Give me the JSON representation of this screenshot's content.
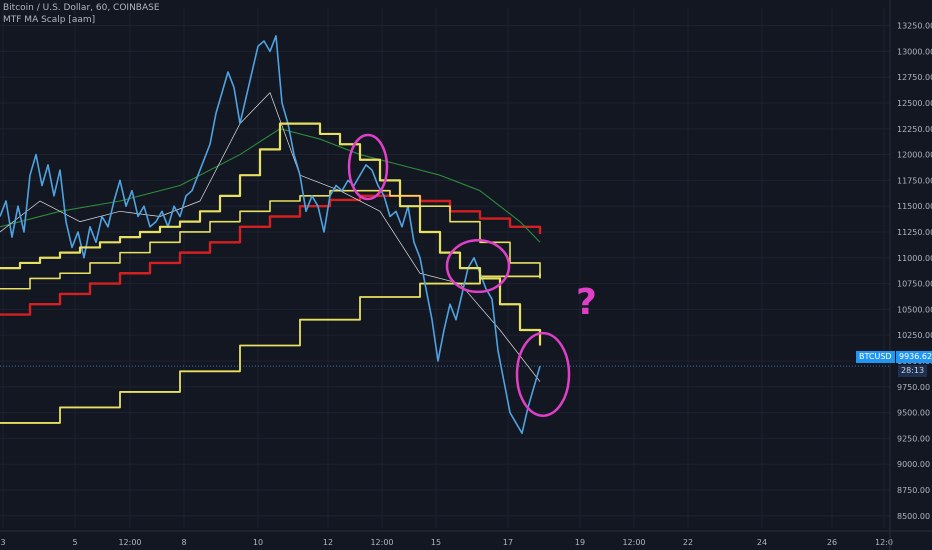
{
  "header": {
    "title": "Bitcoin / U.S. Dollar, 60, COINBASE",
    "indicator": "MTF MA Scalp [aam]"
  },
  "annotation": {
    "question_mark": "?",
    "color": "#e040c8"
  },
  "price_tags": {
    "symbol": "BTCUSD",
    "price": "9936.62",
    "countdown": "28:13",
    "tag_color": "#2196f3",
    "countdown_color": "#1e2f4f"
  },
  "colors": {
    "background": "#131722",
    "grid": "#1e2230",
    "axis_text": "#b2b5be",
    "price_line": "#4fa3e0",
    "yellow_ma": "#e8e060",
    "red_ma": "#d42020",
    "green_ma": "#2e8b3a",
    "thin_ma": "#e0e0e0"
  },
  "chart_data": {
    "type": "line",
    "title": "Bitcoin / U.S. Dollar, 60, COINBASE",
    "y_ticks": [
      8500,
      8750,
      9000,
      9250,
      9500,
      9750,
      10000,
      10250,
      10500,
      10750,
      11000,
      11250,
      11500,
      11750,
      12000,
      12250,
      12500,
      12750,
      13000,
      13250
    ],
    "ylim": [
      8440,
      13420
    ],
    "x_tick_labels": [
      "3",
      "5",
      "12:00",
      "8",
      "10",
      "12",
      "12:00",
      "15",
      "17",
      "19",
      "12:00",
      "22",
      "24",
      "26",
      "12:0"
    ],
    "x_tick_pos": [
      3,
      75,
      130,
      184,
      258,
      328,
      382,
      436,
      508,
      580,
      634,
      688,
      762,
      832,
      884
    ],
    "xlim": [
      0,
      890
    ],
    "circles": [
      {
        "x": 368,
        "y": 11880,
        "w": 38,
        "h": 620
      },
      {
        "x": 478,
        "y": 10920,
        "w": 62,
        "h": 500
      },
      {
        "x": 543,
        "y": 9870,
        "w": 52,
        "h": 800
      }
    ],
    "series": [
      {
        "name": "BTCUSD",
        "kind": "price",
        "x": [
          0,
          6,
          12,
          18,
          24,
          30,
          36,
          42,
          48,
          54,
          60,
          66,
          72,
          78,
          84,
          90,
          96,
          102,
          108,
          114,
          120,
          126,
          132,
          138,
          144,
          150,
          156,
          162,
          168,
          174,
          180,
          186,
          192,
          198,
          204,
          210,
          216,
          222,
          228,
          234,
          240,
          246,
          252,
          258,
          264,
          270,
          276,
          282,
          288,
          294,
          300,
          306,
          312,
          318,
          324,
          330,
          336,
          342,
          348,
          354,
          360,
          366,
          372,
          378,
          384,
          390,
          396,
          402,
          408,
          414,
          420,
          426,
          432,
          438,
          444,
          450,
          456,
          462,
          468,
          474,
          480,
          486,
          492,
          498,
          504,
          510,
          516,
          522,
          528,
          534,
          540
        ],
        "y": [
          11400,
          11550,
          11200,
          11500,
          11250,
          11800,
          12000,
          11700,
          11900,
          11600,
          11850,
          11350,
          11100,
          11250,
          11000,
          11300,
          11150,
          11400,
          11300,
          11550,
          11750,
          11500,
          11650,
          11400,
          11500,
          11300,
          11350,
          11450,
          11300,
          11500,
          11400,
          11600,
          11650,
          11800,
          11950,
          12100,
          12400,
          12600,
          12800,
          12650,
          12300,
          12550,
          12800,
          13050,
          13100,
          13000,
          13150,
          12500,
          12300,
          12000,
          11800,
          11450,
          11600,
          11500,
          11250,
          11600,
          11700,
          11650,
          11750,
          11700,
          11800,
          11900,
          11850,
          11700,
          11600,
          11400,
          11450,
          11300,
          11500,
          11150,
          11000,
          10700,
          10400,
          10000,
          10300,
          10550,
          10400,
          10650,
          10900,
          11000,
          10850,
          10700,
          10600,
          10100,
          9800,
          9500,
          9400,
          9300,
          9550,
          9750,
          9950
        ]
      },
      {
        "name": "Yellow MA 1",
        "kind": "step",
        "x": [
          0,
          20,
          40,
          60,
          80,
          100,
          120,
          140,
          160,
          180,
          200,
          220,
          240,
          260,
          280,
          300,
          320,
          340,
          360,
          380,
          400,
          420,
          440,
          460,
          480,
          500,
          520,
          540
        ],
        "y": [
          10900,
          10950,
          11000,
          11050,
          11100,
          11150,
          11200,
          11250,
          11300,
          11350,
          11450,
          11600,
          11800,
          12050,
          12300,
          12300,
          12200,
          12100,
          11950,
          11750,
          11500,
          11250,
          11050,
          10900,
          10800,
          10550,
          10300,
          10150
        ]
      },
      {
        "name": "Yellow MA 2",
        "kind": "step",
        "x": [
          0,
          30,
          60,
          90,
          120,
          150,
          180,
          210,
          240,
          270,
          300,
          330,
          360,
          390,
          420,
          450,
          480,
          510,
          540
        ],
        "y": [
          10700,
          10800,
          10850,
          10950,
          11050,
          11150,
          11250,
          11350,
          11450,
          11550,
          11600,
          11650,
          11650,
          11600,
          11500,
          11350,
          11150,
          10950,
          10800
        ]
      },
      {
        "name": "Yellow MA 3",
        "kind": "step",
        "x": [
          0,
          60,
          120,
          180,
          240,
          300,
          360,
          420,
          480,
          540
        ],
        "y": [
          9400,
          9550,
          9700,
          9900,
          10150,
          10400,
          10620,
          10750,
          10820,
          10850
        ]
      },
      {
        "name": "Red MA",
        "kind": "step",
        "x": [
          0,
          30,
          60,
          90,
          120,
          150,
          180,
          210,
          240,
          270,
          300,
          330,
          360,
          390,
          420,
          450,
          480,
          510,
          540
        ],
        "y": [
          10450,
          10550,
          10650,
          10750,
          10850,
          10950,
          11050,
          11150,
          11300,
          11400,
          11500,
          11560,
          11600,
          11600,
          11550,
          11450,
          11380,
          11300,
          11230
        ]
      },
      {
        "name": "Green MA",
        "kind": "line",
        "x": [
          0,
          60,
          120,
          180,
          240,
          280,
          320,
          360,
          400,
          440,
          480,
          520,
          540
        ],
        "y": [
          11300,
          11450,
          11550,
          11700,
          12000,
          12250,
          12150,
          12000,
          11900,
          11800,
          11650,
          11350,
          11150
        ]
      },
      {
        "name": "Thin MA",
        "kind": "line",
        "x": [
          0,
          40,
          80,
          120,
          160,
          200,
          240,
          270,
          300,
          340,
          380,
          420,
          460,
          500,
          540
        ],
        "y": [
          11250,
          11550,
          11350,
          11450,
          11400,
          11550,
          12300,
          12600,
          11800,
          11650,
          11450,
          10850,
          10750,
          10300,
          9800
        ]
      }
    ]
  }
}
